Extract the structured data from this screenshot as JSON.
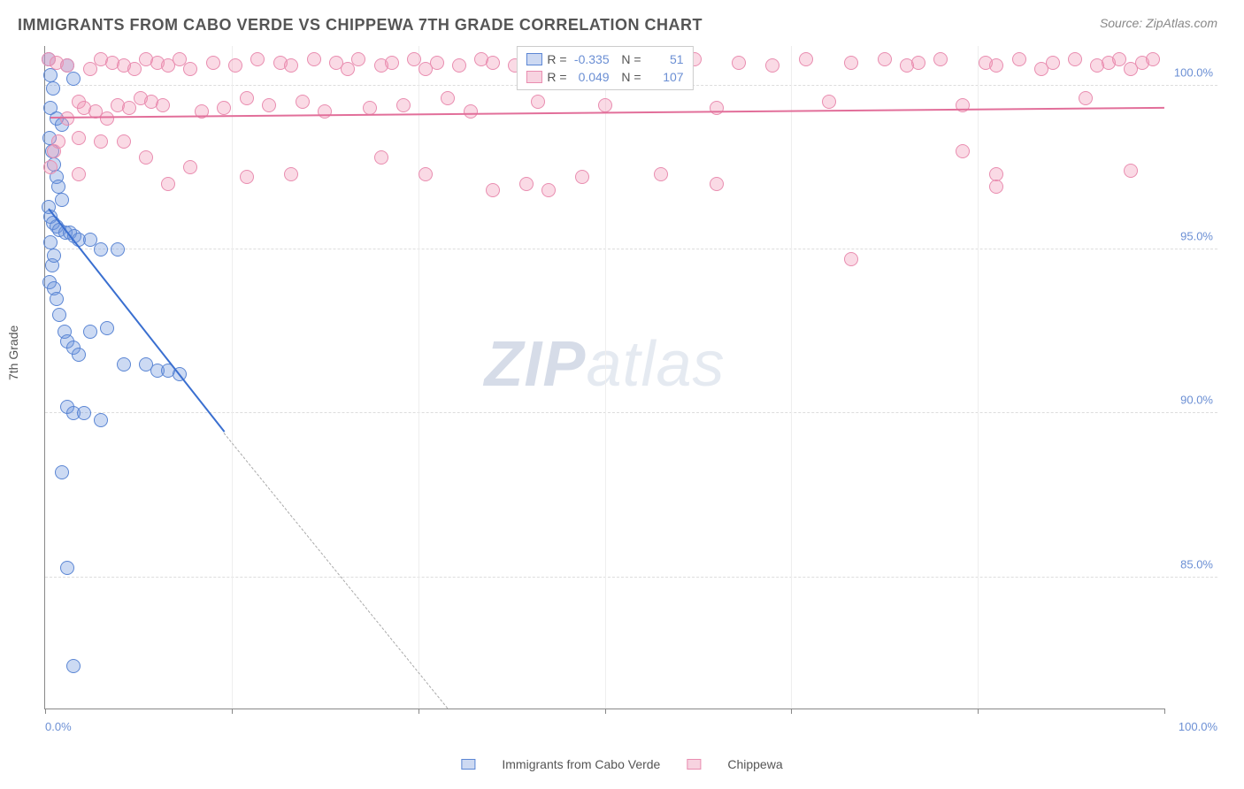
{
  "title": "IMMIGRANTS FROM CABO VERDE VS CHIPPEWA 7TH GRADE CORRELATION CHART",
  "source": "Source: ZipAtlas.com",
  "watermark_a": "ZIP",
  "watermark_b": "atlas",
  "chart": {
    "type": "scatter",
    "xlim": [
      0,
      100
    ],
    "ylim": [
      81,
      101.2
    ],
    "y_axis_title": "7th Grade",
    "y_ticks": [
      85.0,
      90.0,
      95.0,
      100.0
    ],
    "y_tick_labels": [
      "85.0%",
      "90.0%",
      "95.0%",
      "100.0%"
    ],
    "x_tick_positions": [
      0,
      16.67,
      33.33,
      50,
      66.67,
      83.33,
      100
    ],
    "x_left_label": "0.0%",
    "x_right_label": "100.0%",
    "background_color": "#ffffff",
    "grid_color": "#dddddd",
    "axis_color": "#888888",
    "marker_radius": 8,
    "marker_opacity": 0.55,
    "series": [
      {
        "name": "Immigrants from Cabo Verde",
        "color_fill": "rgba(110,150,220,0.35)",
        "color_stroke": "#5b86d4",
        "legend_swatch_fill": "#cdd9f2",
        "legend_swatch_border": "#5b86d4",
        "R": "-0.335",
        "N": "51",
        "trend": {
          "x1": 0.3,
          "y1": 96.2,
          "x2_solid": 16,
          "y2_solid": 89.4,
          "x2_dash": 36,
          "y2_dash": 81,
          "color": "#3a6fd0"
        },
        "points": [
          [
            0.3,
            100.8
          ],
          [
            0.5,
            100.3
          ],
          [
            0.7,
            99.9
          ],
          [
            0.5,
            99.3
          ],
          [
            1.0,
            99.0
          ],
          [
            1.5,
            98.8
          ],
          [
            2.0,
            100.6
          ],
          [
            2.5,
            100.2
          ],
          [
            0.4,
            98.4
          ],
          [
            0.6,
            98.0
          ],
          [
            0.8,
            97.6
          ],
          [
            1.0,
            97.2
          ],
          [
            1.2,
            96.9
          ],
          [
            1.5,
            96.5
          ],
          [
            0.3,
            96.3
          ],
          [
            0.5,
            96.0
          ],
          [
            0.7,
            95.8
          ],
          [
            1.0,
            95.7
          ],
          [
            1.3,
            95.6
          ],
          [
            1.8,
            95.5
          ],
          [
            2.2,
            95.5
          ],
          [
            2.6,
            95.4
          ],
          [
            3.0,
            95.3
          ],
          [
            4.0,
            95.3
          ],
          [
            5.0,
            95.0
          ],
          [
            6.5,
            95.0
          ],
          [
            0.4,
            94.0
          ],
          [
            0.6,
            94.5
          ],
          [
            0.8,
            93.8
          ],
          [
            1.0,
            93.5
          ],
          [
            1.3,
            93.0
          ],
          [
            1.7,
            92.5
          ],
          [
            2.0,
            92.2
          ],
          [
            2.5,
            92.0
          ],
          [
            3.0,
            91.8
          ],
          [
            4.0,
            92.5
          ],
          [
            5.5,
            92.6
          ],
          [
            7.0,
            91.5
          ],
          [
            9.0,
            91.5
          ],
          [
            10,
            91.3
          ],
          [
            11,
            91.3
          ],
          [
            12,
            91.2
          ],
          [
            2.0,
            90.2
          ],
          [
            2.5,
            90.0
          ],
          [
            3.5,
            90.0
          ],
          [
            5.0,
            89.8
          ],
          [
            1.5,
            88.2
          ],
          [
            2.0,
            85.3
          ],
          [
            2.5,
            82.3
          ],
          [
            0.5,
            95.2
          ],
          [
            0.8,
            94.8
          ]
        ]
      },
      {
        "name": "Chippewa",
        "color_fill": "rgba(240,150,180,0.35)",
        "color_stroke": "#e98db0",
        "legend_swatch_fill": "#f7d3e0",
        "legend_swatch_border": "#e98db0",
        "R": "0.049",
        "N": "107",
        "trend": {
          "x1": 0.5,
          "y1": 99.0,
          "x2_solid": 100,
          "y2_solid": 99.3,
          "color": "#e26f9a"
        },
        "points": [
          [
            0.3,
            100.8
          ],
          [
            1,
            100.7
          ],
          [
            2,
            100.6
          ],
          [
            3,
            99.5
          ],
          [
            3.5,
            99.3
          ],
          [
            4,
            100.5
          ],
          [
            4.5,
            99.2
          ],
          [
            5,
            100.8
          ],
          [
            5.5,
            99.0
          ],
          [
            6,
            100.7
          ],
          [
            6.5,
            99.4
          ],
          [
            7,
            100.6
          ],
          [
            7.5,
            99.3
          ],
          [
            8,
            100.5
          ],
          [
            8.5,
            99.6
          ],
          [
            9,
            100.8
          ],
          [
            9.5,
            99.5
          ],
          [
            10,
            100.7
          ],
          [
            10.5,
            99.4
          ],
          [
            11,
            100.6
          ],
          [
            12,
            100.8
          ],
          [
            13,
            100.5
          ],
          [
            14,
            99.2
          ],
          [
            15,
            100.7
          ],
          [
            16,
            99.3
          ],
          [
            17,
            100.6
          ],
          [
            18,
            99.6
          ],
          [
            19,
            100.8
          ],
          [
            20,
            99.4
          ],
          [
            21,
            100.7
          ],
          [
            22,
            100.6
          ],
          [
            23,
            99.5
          ],
          [
            24,
            100.8
          ],
          [
            25,
            99.2
          ],
          [
            26,
            100.7
          ],
          [
            27,
            100.5
          ],
          [
            28,
            100.8
          ],
          [
            29,
            99.3
          ],
          [
            30,
            100.6
          ],
          [
            31,
            100.7
          ],
          [
            32,
            99.4
          ],
          [
            33,
            100.8
          ],
          [
            34,
            100.5
          ],
          [
            35,
            100.7
          ],
          [
            36,
            99.6
          ],
          [
            37,
            100.6
          ],
          [
            38,
            99.2
          ],
          [
            39,
            100.8
          ],
          [
            40,
            100.7
          ],
          [
            42,
            100.6
          ],
          [
            44,
            99.5
          ],
          [
            46,
            100.8
          ],
          [
            48,
            100.5
          ],
          [
            50,
            99.4
          ],
          [
            52,
            100.7
          ],
          [
            55,
            100.6
          ],
          [
            58,
            100.8
          ],
          [
            60,
            99.3
          ],
          [
            62,
            100.7
          ],
          [
            65,
            100.6
          ],
          [
            68,
            100.8
          ],
          [
            70,
            99.5
          ],
          [
            72,
            100.7
          ],
          [
            75,
            100.8
          ],
          [
            77,
            100.6
          ],
          [
            78,
            100.7
          ],
          [
            80,
            100.8
          ],
          [
            82,
            99.4
          ],
          [
            84,
            100.7
          ],
          [
            85,
            100.6
          ],
          [
            87,
            100.8
          ],
          [
            89,
            100.5
          ],
          [
            90,
            100.7
          ],
          [
            92,
            100.8
          ],
          [
            93,
            99.6
          ],
          [
            94,
            100.6
          ],
          [
            95,
            100.7
          ],
          [
            96,
            100.8
          ],
          [
            97,
            100.5
          ],
          [
            98,
            100.7
          ],
          [
            99,
            100.8
          ],
          [
            3,
            98.4
          ],
          [
            5,
            98.3
          ],
          [
            7,
            98.3
          ],
          [
            9,
            97.8
          ],
          [
            11,
            97.0
          ],
          [
            13,
            97.5
          ],
          [
            18,
            97.2
          ],
          [
            22,
            97.3
          ],
          [
            30,
            97.8
          ],
          [
            34,
            97.3
          ],
          [
            40,
            96.8
          ],
          [
            43,
            97.0
          ],
          [
            45,
            96.8
          ],
          [
            48,
            97.2
          ],
          [
            55,
            97.3
          ],
          [
            60,
            97.0
          ],
          [
            72,
            94.7
          ],
          [
            82,
            98.0
          ],
          [
            85,
            97.3
          ],
          [
            97,
            97.4
          ],
          [
            85,
            96.9
          ],
          [
            3,
            97.3
          ],
          [
            0.5,
            97.5
          ],
          [
            0.8,
            98.0
          ],
          [
            1.2,
            98.3
          ],
          [
            2,
            99.0
          ]
        ]
      }
    ]
  },
  "bottom_legend": {
    "items": [
      {
        "label": "Immigrants from Cabo Verde",
        "fill": "#cdd9f2",
        "border": "#5b86d4"
      },
      {
        "label": "Chippewa",
        "fill": "#f7d3e0",
        "border": "#e98db0"
      }
    ]
  }
}
